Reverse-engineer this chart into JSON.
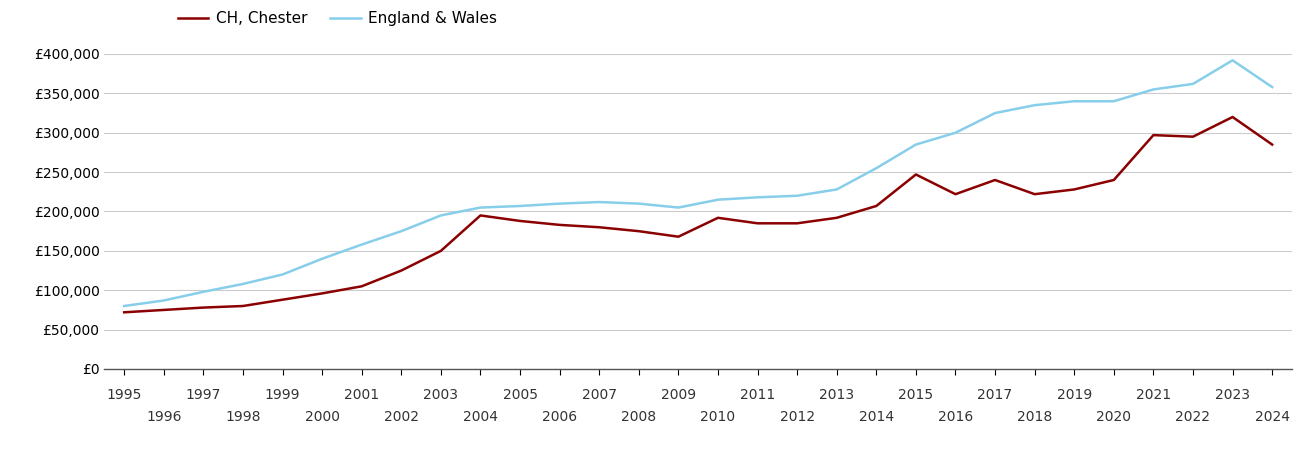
{
  "ch_chester_years": [
    1995,
    1996,
    1997,
    1998,
    1999,
    2000,
    2001,
    2002,
    2003,
    2004,
    2005,
    2006,
    2007,
    2008,
    2009,
    2010,
    2011,
    2012,
    2013,
    2014,
    2015,
    2016,
    2017,
    2018,
    2019,
    2020,
    2021,
    2022,
    2023,
    2024
  ],
  "ch_chester_values": [
    72000,
    75000,
    78000,
    80000,
    88000,
    96000,
    105000,
    125000,
    150000,
    195000,
    188000,
    183000,
    180000,
    175000,
    168000,
    192000,
    185000,
    185000,
    192000,
    207000,
    247000,
    222000,
    240000,
    222000,
    228000,
    240000,
    297000,
    295000,
    320000,
    285000
  ],
  "eng_wales_years": [
    1995,
    1996,
    1997,
    1998,
    1999,
    2000,
    2001,
    2002,
    2003,
    2004,
    2005,
    2006,
    2007,
    2008,
    2009,
    2010,
    2011,
    2012,
    2013,
    2014,
    2015,
    2016,
    2017,
    2018,
    2019,
    2020,
    2021,
    2022,
    2023,
    2024
  ],
  "eng_wales_values": [
    80000,
    87000,
    98000,
    108000,
    120000,
    140000,
    158000,
    175000,
    195000,
    205000,
    207000,
    210000,
    212000,
    210000,
    205000,
    215000,
    218000,
    220000,
    228000,
    255000,
    285000,
    300000,
    325000,
    335000,
    340000,
    340000,
    355000,
    362000,
    392000,
    358000
  ],
  "ch_color": "#8B0000",
  "eng_color": "#87CEEB",
  "ch_label": "CH, Chester",
  "eng_label": "England & Wales",
  "ylim": [
    0,
    400000
  ],
  "yticks": [
    0,
    50000,
    100000,
    150000,
    200000,
    250000,
    300000,
    350000,
    400000
  ],
  "xlim_min": 1994.5,
  "xlim_max": 2024.5,
  "bg_color": "#ffffff",
  "grid_color": "#cccccc",
  "line_width": 1.8,
  "tick_fontsize": 10,
  "legend_fontsize": 11
}
